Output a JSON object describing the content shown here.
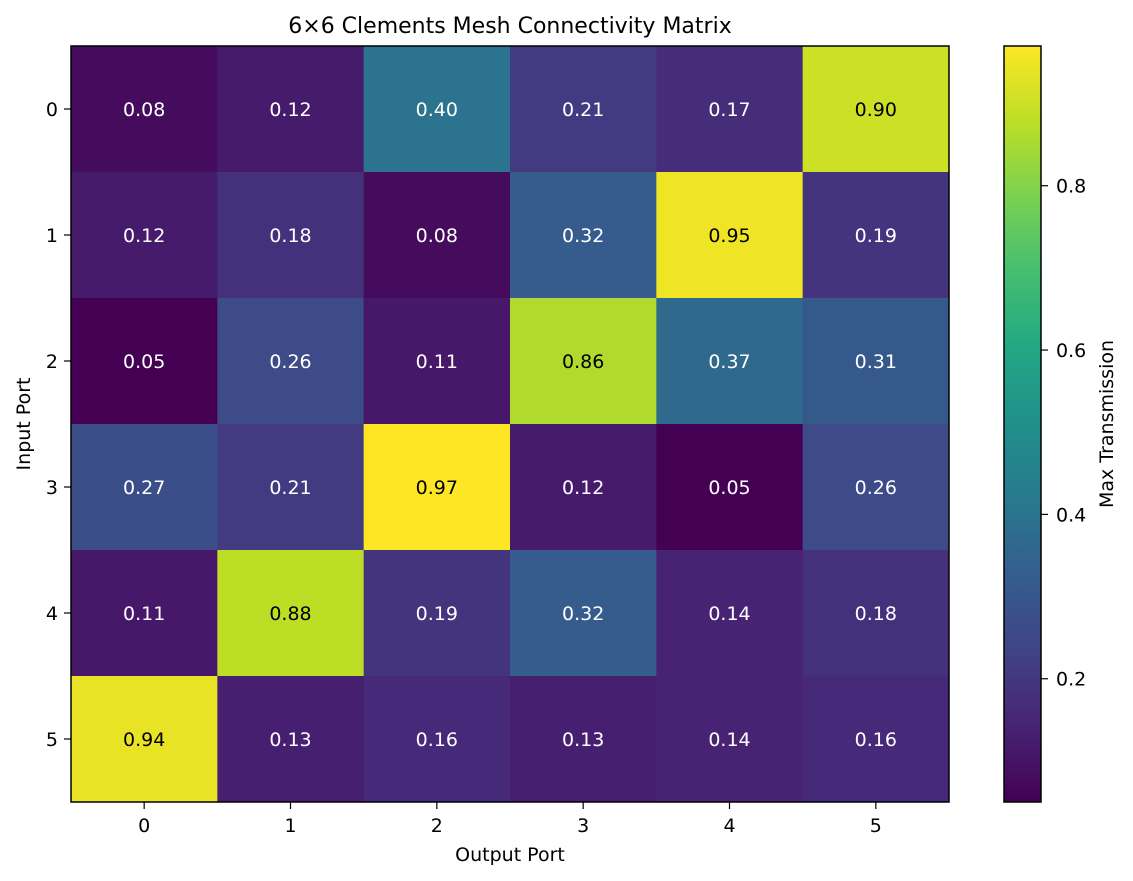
{
  "chart_data": {
    "type": "heatmap",
    "title": "6×6 Clements Mesh Connectivity Matrix",
    "xlabel": "Output Port",
    "ylabel": "Input Port",
    "x_categories": [
      "0",
      "1",
      "2",
      "3",
      "4",
      "5"
    ],
    "y_categories": [
      "0",
      "1",
      "2",
      "3",
      "4",
      "5"
    ],
    "values": [
      [
        0.08,
        0.12,
        0.4,
        0.21,
        0.17,
        0.9
      ],
      [
        0.12,
        0.18,
        0.08,
        0.32,
        0.95,
        0.19
      ],
      [
        0.05,
        0.26,
        0.11,
        0.86,
        0.37,
        0.31
      ],
      [
        0.27,
        0.21,
        0.97,
        0.12,
        0.05,
        0.26
      ],
      [
        0.11,
        0.88,
        0.19,
        0.32,
        0.14,
        0.18
      ],
      [
        0.94,
        0.13,
        0.16,
        0.13,
        0.14,
        0.16
      ]
    ],
    "value_format": "0.00",
    "colormap": "viridis",
    "color_range": [
      0.05,
      0.97
    ],
    "colorbar": {
      "label": "Max Transmission",
      "ticks": [
        "0.2",
        "0.4",
        "0.6",
        "0.8"
      ],
      "tick_values": [
        0.2,
        0.4,
        0.6,
        0.8
      ]
    },
    "grid": false
  }
}
